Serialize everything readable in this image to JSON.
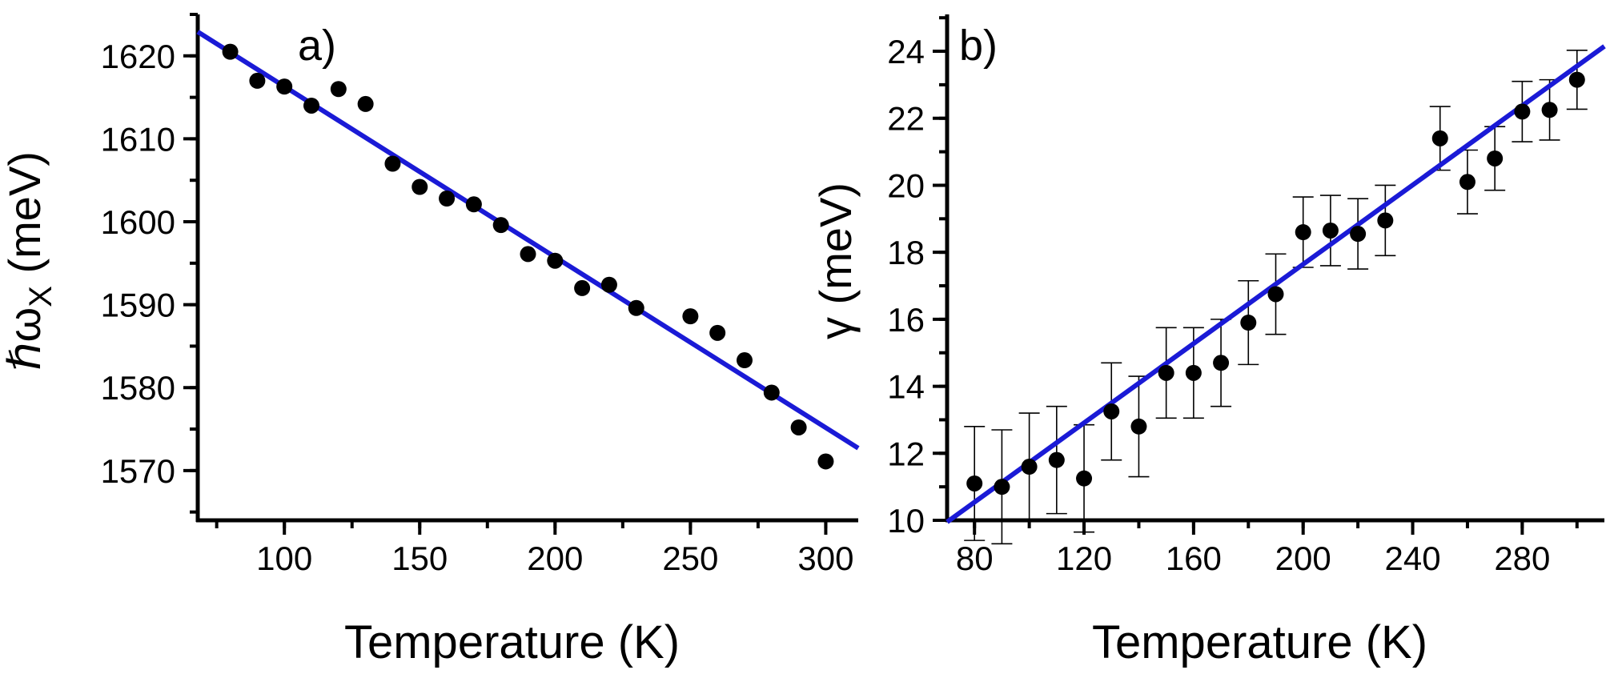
{
  "chart_data": [
    {
      "type": "scatter",
      "panel_label": "a)",
      "xlabel": "Temperature (K)",
      "ylabel": "ℏωX (meV)",
      "ylabel_main": "ℏω",
      "ylabel_sub": "X",
      "ylabel_unit": " (meV)",
      "xlim": [
        68,
        312
      ],
      "ylim": [
        1564,
        1625
      ],
      "xticks": [
        100,
        150,
        200,
        250,
        300
      ],
      "yticks": [
        1570,
        1580,
        1590,
        1600,
        1610,
        1620
      ],
      "x_minor_step": 25,
      "y_minor_step": 5,
      "grid": false,
      "series": [
        {
          "x": [
            80,
            90,
            100,
            110,
            120,
            130,
            140,
            150,
            160,
            170,
            180,
            190,
            200,
            210,
            220,
            230,
            250,
            260,
            270,
            280,
            290,
            300
          ],
          "y": [
            1620.5,
            1617.0,
            1616.3,
            1614.0,
            1616.0,
            1614.2,
            1607.0,
            1604.2,
            1602.8,
            1602.1,
            1599.6,
            1596.1,
            1595.3,
            1592.0,
            1592.4,
            1589.6,
            1588.6,
            1586.6,
            1583.3,
            1579.4,
            1575.2,
            1571.1
          ]
        }
      ],
      "fit_line": {
        "x": [
          68,
          312
        ],
        "y": [
          1622.9,
          1572.7
        ]
      },
      "colors": {
        "points": "#000000",
        "fit": "#1a1ad6"
      }
    },
    {
      "type": "scatter",
      "panel_label": "b)",
      "xlabel": "Temperature (K)",
      "ylabel": "γ (meV)",
      "xlim": [
        70,
        310
      ],
      "ylim": [
        10,
        25.1
      ],
      "xticks": [
        80,
        120,
        160,
        200,
        240,
        280
      ],
      "yticks": [
        10,
        12,
        14,
        16,
        18,
        20,
        22,
        24
      ],
      "x_minor_step": 20,
      "y_minor_step": 1,
      "grid": false,
      "series": [
        {
          "x": [
            80,
            90,
            100,
            110,
            120,
            130,
            140,
            150,
            160,
            170,
            180,
            190,
            200,
            210,
            220,
            230,
            250,
            260,
            270,
            280,
            290,
            300
          ],
          "y": [
            11.1,
            11.0,
            11.6,
            11.8,
            11.25,
            13.25,
            12.8,
            14.4,
            14.4,
            14.7,
            15.9,
            16.75,
            18.6,
            18.65,
            18.55,
            18.95,
            21.4,
            20.1,
            20.8,
            22.2,
            22.25,
            23.15
          ],
          "yerr": [
            1.7,
            1.7,
            1.6,
            1.6,
            1.6,
            1.45,
            1.5,
            1.35,
            1.35,
            1.3,
            1.25,
            1.2,
            1.05,
            1.05,
            1.05,
            1.05,
            0.95,
            0.95,
            0.95,
            0.9,
            0.9,
            0.88
          ]
        }
      ],
      "fit_line": {
        "x": [
          70,
          310
        ],
        "y": [
          9.95,
          24.15
        ]
      },
      "colors": {
        "points": "#000000",
        "fit": "#1a1ad6"
      }
    }
  ]
}
